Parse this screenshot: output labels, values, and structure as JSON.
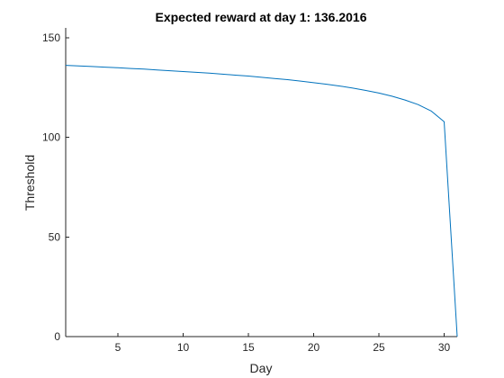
{
  "chart_data": {
    "type": "line",
    "title": "Expected reward at day 1: 136.2016",
    "xlabel": "Day",
    "ylabel": "Threshold",
    "xlim": [
      1,
      31
    ],
    "ylim": [
      0,
      155
    ],
    "xticks": [
      5,
      10,
      15,
      20,
      25,
      30
    ],
    "yticks": [
      0,
      50,
      100,
      150
    ],
    "grid": false,
    "box": "left-bottom",
    "series": [
      {
        "color": "#0072bd",
        "x": [
          1,
          2,
          3,
          4,
          5,
          6,
          7,
          8,
          9,
          10,
          11,
          12,
          13,
          14,
          15,
          16,
          17,
          18,
          19,
          20,
          21,
          22,
          23,
          24,
          25,
          26,
          27,
          28,
          29,
          30,
          31
        ],
        "y": [
          136.2,
          135.9,
          135.6,
          135.3,
          135.0,
          134.6,
          134.3,
          133.9,
          133.5,
          133.1,
          132.7,
          132.3,
          131.8,
          131.3,
          130.8,
          130.2,
          129.6,
          129.0,
          128.3,
          127.5,
          126.7,
          125.8,
          124.8,
          123.6,
          122.3,
          120.7,
          118.8,
          116.5,
          113.3,
          107.9,
          0
        ]
      }
    ]
  },
  "colors": {
    "axis": "#262626",
    "background": "#ffffff"
  }
}
